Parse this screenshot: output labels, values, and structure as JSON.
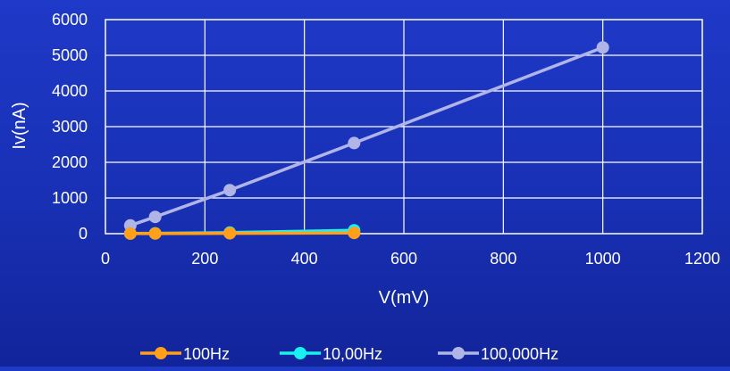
{
  "chart_data": {
    "type": "scatter",
    "title": "",
    "xlabel": "V(mV)",
    "ylabel": "Iv(nA)",
    "xlim": [
      0,
      1200
    ],
    "ylim": [
      0,
      6000
    ],
    "x_ticks": [
      0,
      200,
      400,
      600,
      800,
      1000,
      1200
    ],
    "y_ticks": [
      0,
      1000,
      2000,
      3000,
      4000,
      5000,
      6000
    ],
    "grid": true,
    "legend_position": "bottom",
    "series": [
      {
        "name": "100Hz",
        "color": "#ff9f1a",
        "points": [
          [
            50,
            2
          ],
          [
            100,
            4
          ],
          [
            250,
            10
          ],
          [
            500,
            20
          ]
        ]
      },
      {
        "name": "10,00Hz",
        "color": "#19f0f0",
        "points": [
          [
            50,
            5
          ],
          [
            100,
            10
          ],
          [
            250,
            30
          ],
          [
            500,
            95
          ]
        ]
      },
      {
        "name": "100,000Hz",
        "color": "#b0b4e6",
        "points": [
          [
            50,
            230
          ],
          [
            100,
            470
          ],
          [
            250,
            1220
          ],
          [
            500,
            2540
          ],
          [
            1000,
            5220
          ]
        ]
      }
    ]
  }
}
